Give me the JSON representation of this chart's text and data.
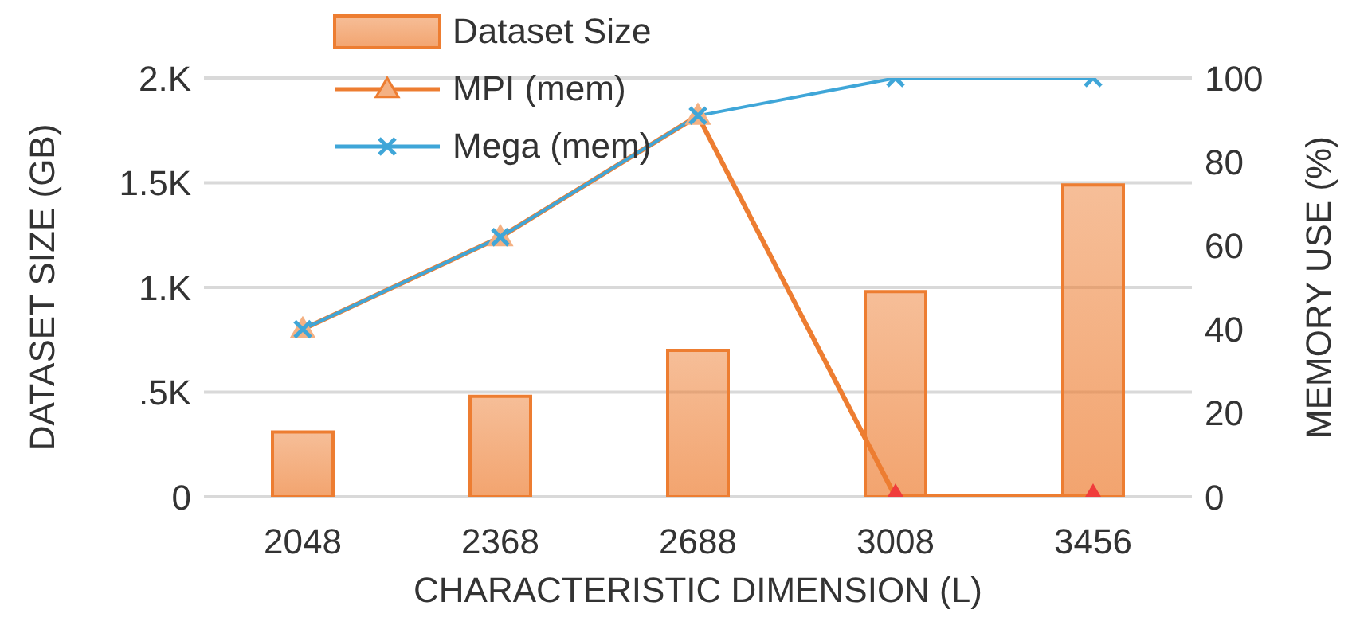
{
  "chart_data": {
    "type": "bar",
    "xlabel": "CHARACTERISTIC DIMENSION (L)",
    "ylabel": "DATASET SIZE (GB)",
    "y2label": "MEMORY USE (%)",
    "categories": [
      "2048",
      "2368",
      "2688",
      "3008",
      "3456"
    ],
    "series": [
      {
        "name": "Dataset Size",
        "color": "#ed7d31",
        "values": [
          0.31,
          0.48,
          0.7,
          0.98,
          1.49
        ]
      },
      {
        "name": "MPI (mem)",
        "type": "line",
        "axis": "y2",
        "marker": "triangle",
        "color": "#ed7d31",
        "colors": [
          "#f4b183",
          "#f4b183",
          "#f4b183",
          "#f03c3c",
          "#f03c3c"
        ],
        "values": [
          40,
          62,
          91,
          0,
          0
        ]
      },
      {
        "name": "Mega (mem)",
        "type": "line",
        "axis": "y2",
        "marker": "cross",
        "color": "#3fa6d8",
        "values": [
          40,
          62,
          91,
          100,
          100
        ]
      }
    ],
    "ylim": [
      0,
      2
    ],
    "yticks": [
      0,
      {
        "value": 0.5,
        "label": ".5K"
      },
      {
        "value": 1,
        "label": "1.K"
      },
      {
        "value": 1.5,
        "label": "1.5K"
      },
      {
        "value": 2,
        "label": "2.K"
      }
    ],
    "y2lim": [
      0,
      100
    ],
    "y2ticks": [
      0,
      20,
      40,
      60,
      80,
      100
    ],
    "grid": "y",
    "legend": "top left"
  }
}
